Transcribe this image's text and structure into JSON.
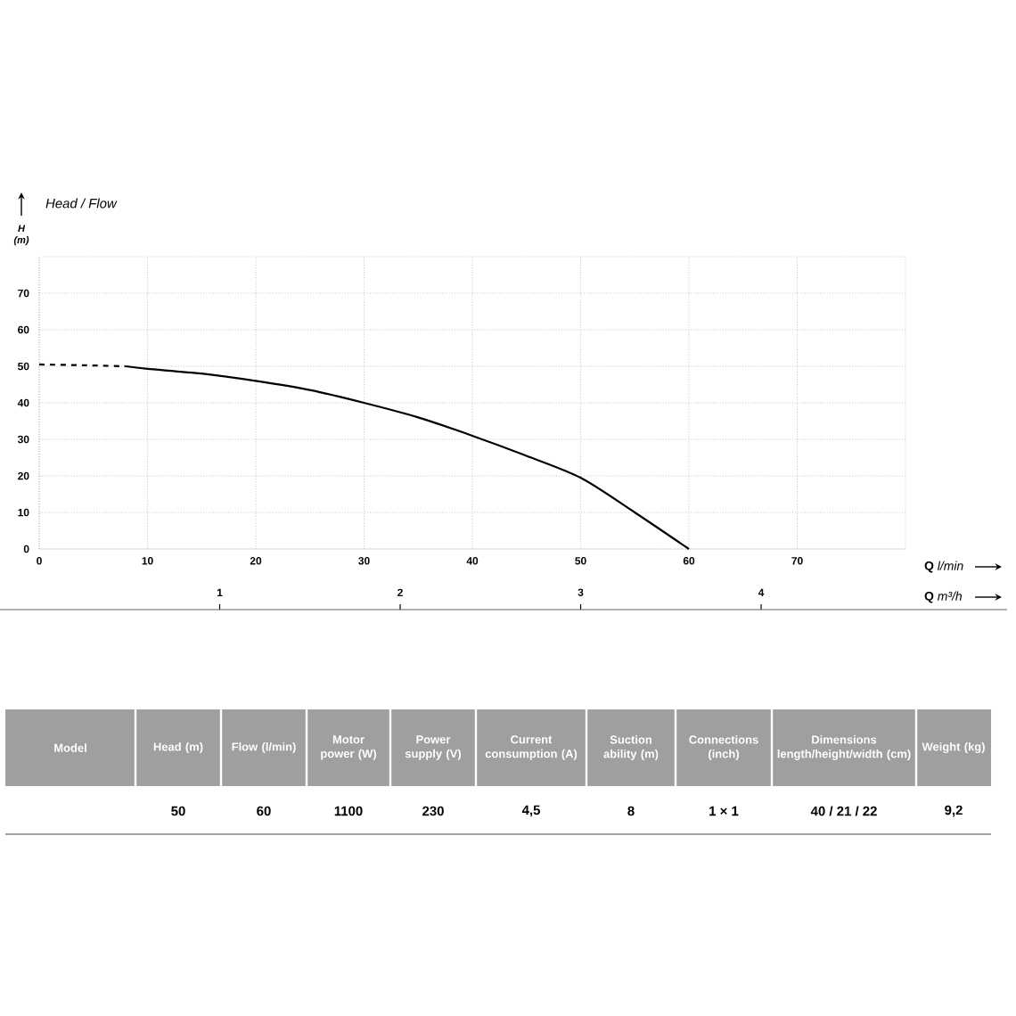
{
  "chart_data": {
    "type": "line",
    "title": "Head / Flow",
    "ylabel": "H (m)",
    "xlabel": "**Q** *l/min*",
    "x2label": "**Q** *m³/h*",
    "xlim": [
      0,
      80
    ],
    "ylim": [
      0,
      80
    ],
    "xticks": [
      0,
      10,
      20,
      30,
      40,
      50,
      60,
      70
    ],
    "yticks": [
      0,
      10,
      20,
      30,
      40,
      50,
      60,
      70
    ],
    "x2lim": [
      0,
      4.8
    ],
    "x2ticks": [
      1,
      2,
      3,
      4
    ],
    "grid": true,
    "marker": "none",
    "series": [
      {
        "color": "#000000",
        "line_style": "dashed",
        "x": [
          0,
          4,
          8
        ],
        "values": [
          50.5,
          50.3,
          50
        ]
      },
      {
        "color": "#000000",
        "line_style": "solid",
        "x": [
          8,
          10,
          15,
          20,
          25,
          30,
          35,
          40,
          45,
          50,
          55,
          60
        ],
        "values": [
          50,
          49.3,
          48,
          46,
          43.5,
          40,
          36,
          31,
          25.5,
          19.5,
          10,
          0
        ]
      }
    ],
    "annotations": [
      "Model",
      "Head (m)",
      "Flow (l/min)",
      "Motor power (W)",
      "Power supply (V)",
      "Current consumption (A)",
      "Suction ability (m)",
      "Connections (inch)",
      "Dimensions length/height/width (cm)",
      "Weight (kg)",
      "50",
      "60",
      "1100",
      "230",
      "4,5",
      "8",
      "1 × 1",
      "40 / 21 / 22",
      "9,2"
    ]
  }
}
